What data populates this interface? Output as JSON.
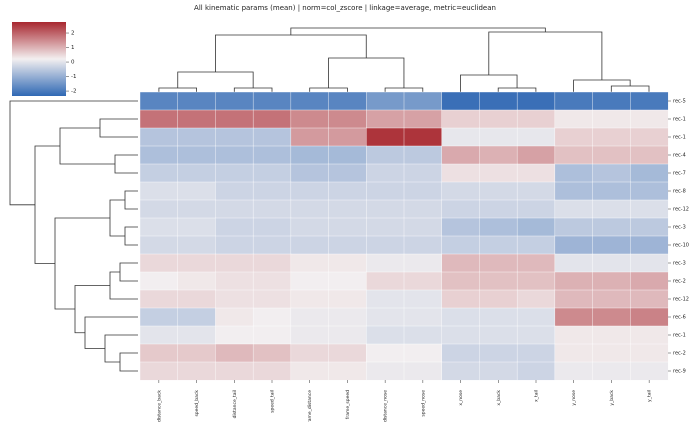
{
  "chart_data": {
    "type": "heatmap",
    "title": "All kinematic params (mean) | norm=col_zscore | linkage=average, metric=euclidean",
    "categories": [
      "distance_back",
      "speed_back",
      "distance_tail",
      "speed_tail",
      "frame_distance",
      "frame_speed",
      "distance_nose",
      "speed_nose",
      "x_nose",
      "x_back",
      "x_tail",
      "y_nose",
      "y_back",
      "y_tail"
    ],
    "rows": [
      "rec-5",
      "rec-1",
      "rec-1",
      "rec-4",
      "rec-7",
      "rec-8",
      "rec-12",
      "rec-3",
      "rec-10",
      "rec-3",
      "rec-2",
      "rec-12",
      "rec-6",
      "rec-1",
      "rec-2",
      "rec-9"
    ],
    "values": [
      [
        -1.8,
        -1.8,
        -1.8,
        -1.8,
        -1.8,
        -1.8,
        -1.4,
        -1.4,
        -2.2,
        -2.2,
        -2.2,
        -2.0,
        -2.0,
        -2.0
      ],
      [
        1.8,
        1.8,
        1.8,
        1.8,
        1.5,
        1.5,
        1.2,
        1.2,
        0.6,
        0.6,
        0.6,
        0.3,
        0.3,
        0.3
      ],
      [
        -0.6,
        -0.6,
        -0.6,
        -0.6,
        1.3,
        1.3,
        2.6,
        2.6,
        0.05,
        0.05,
        0.05,
        0.6,
        0.6,
        0.6
      ],
      [
        -0.7,
        -0.7,
        -0.7,
        -0.7,
        -0.8,
        -0.8,
        -0.5,
        -0.5,
        1.1,
        1.0,
        1.2,
        0.8,
        0.8,
        0.8
      ],
      [
        -0.4,
        -0.4,
        -0.4,
        -0.4,
        -0.6,
        -0.6,
        -0.3,
        -0.3,
        0.4,
        0.4,
        0.4,
        -0.7,
        -0.6,
        -0.8
      ],
      [
        -0.1,
        -0.1,
        -0.3,
        -0.3,
        -0.3,
        -0.3,
        -0.3,
        -0.3,
        -0.2,
        -0.2,
        -0.2,
        -0.7,
        -0.7,
        -0.7
      ],
      [
        -0.2,
        -0.2,
        -0.2,
        -0.2,
        -0.2,
        -0.2,
        -0.2,
        -0.2,
        -0.3,
        -0.3,
        -0.3,
        -0.1,
        -0.1,
        -0.1
      ],
      [
        -0.1,
        -0.1,
        -0.3,
        -0.3,
        -0.2,
        -0.2,
        -0.2,
        -0.2,
        -0.6,
        -0.7,
        -0.8,
        -0.5,
        -0.5,
        -0.5
      ],
      [
        -0.2,
        -0.2,
        -0.3,
        -0.3,
        -0.3,
        -0.3,
        -0.3,
        -0.3,
        -0.4,
        -0.4,
        -0.4,
        -0.9,
        -0.9,
        -0.9
      ],
      [
        0.5,
        0.5,
        0.5,
        0.5,
        0.3,
        0.3,
        0.1,
        0.1,
        0.9,
        0.9,
        0.9,
        0.0,
        0.0,
        0.0
      ],
      [
        0.2,
        0.3,
        0.4,
        0.4,
        0.2,
        0.2,
        0.5,
        0.5,
        0.8,
        0.8,
        0.8,
        1.0,
        1.0,
        1.1
      ],
      [
        0.5,
        0.5,
        0.4,
        0.4,
        0.3,
        0.3,
        0.0,
        0.0,
        0.6,
        0.6,
        0.5,
        0.9,
        0.9,
        0.9
      ],
      [
        -0.4,
        -0.4,
        0.3,
        0.2,
        0.1,
        0.1,
        0.0,
        0.0,
        -0.1,
        -0.1,
        -0.1,
        1.5,
        1.5,
        1.6
      ],
      [
        0.0,
        0.0,
        0.2,
        0.2,
        0.1,
        0.1,
        -0.1,
        -0.1,
        -0.1,
        -0.1,
        -0.1,
        0.3,
        0.3,
        0.3
      ],
      [
        0.7,
        0.7,
        0.9,
        0.8,
        0.5,
        0.5,
        0.2,
        0.2,
        -0.3,
        -0.3,
        -0.3,
        0.3,
        0.3,
        0.3
      ],
      [
        0.5,
        0.5,
        0.5,
        0.5,
        0.3,
        0.3,
        0.1,
        0.1,
        -0.2,
        -0.2,
        -0.3,
        0.1,
        0.1,
        0.1
      ]
    ],
    "clim": [
      -2.34,
      2.76
    ],
    "cticks": [
      -2,
      -1,
      0,
      1,
      2
    ],
    "cmap": [
      "#2f68b4",
      "#f3eff0",
      "#a8272f"
    ]
  }
}
